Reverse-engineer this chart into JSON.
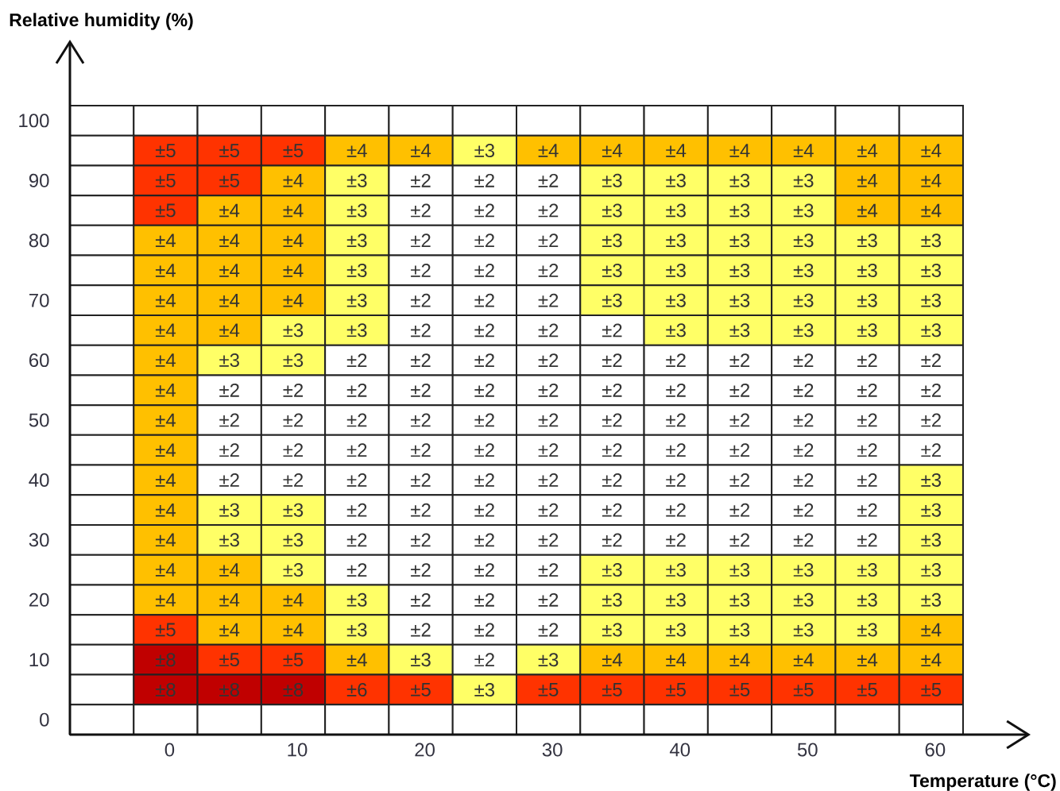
{
  "chart_data": {
    "type": "heatmap",
    "xlabel": "Temperature (°C)",
    "ylabel": "Relative humidity (%)",
    "categories": [
      null,
      "0",
      null,
      "10",
      null,
      "20",
      null,
      "30",
      null,
      "40",
      null,
      "50",
      null,
      "60"
    ],
    "y_categories": [
      "100",
      null,
      "90",
      null,
      "80",
      null,
      "70",
      null,
      "60",
      null,
      "50",
      null,
      "40",
      null,
      "30",
      null,
      "20",
      null,
      "10",
      null,
      "0"
    ],
    "cells": [
      [
        null,
        null,
        null,
        null,
        null,
        null,
        null,
        null,
        null,
        null,
        null,
        null,
        null,
        null
      ],
      [
        null,
        5,
        5,
        5,
        4,
        4,
        3,
        4,
        4,
        4,
        4,
        4,
        4,
        4
      ],
      [
        null,
        5,
        5,
        4,
        3,
        2,
        2,
        2,
        3,
        3,
        3,
        3,
        4,
        4
      ],
      [
        null,
        5,
        4,
        4,
        3,
        2,
        2,
        2,
        3,
        3,
        3,
        3,
        4,
        4
      ],
      [
        null,
        4,
        4,
        4,
        3,
        2,
        2,
        2,
        3,
        3,
        3,
        3,
        3,
        3
      ],
      [
        null,
        4,
        4,
        4,
        3,
        2,
        2,
        2,
        3,
        3,
        3,
        3,
        3,
        3
      ],
      [
        null,
        4,
        4,
        4,
        3,
        2,
        2,
        2,
        3,
        3,
        3,
        3,
        3,
        3
      ],
      [
        null,
        4,
        4,
        3,
        3,
        2,
        2,
        2,
        2,
        3,
        3,
        3,
        3,
        3
      ],
      [
        null,
        4,
        3,
        3,
        2,
        2,
        2,
        2,
        2,
        2,
        2,
        2,
        2,
        2
      ],
      [
        null,
        4,
        2,
        2,
        2,
        2,
        2,
        2,
        2,
        2,
        2,
        2,
        2,
        2
      ],
      [
        null,
        4,
        2,
        2,
        2,
        2,
        2,
        2,
        2,
        2,
        2,
        2,
        2,
        2
      ],
      [
        null,
        4,
        2,
        2,
        2,
        2,
        2,
        2,
        2,
        2,
        2,
        2,
        2,
        2
      ],
      [
        null,
        4,
        2,
        2,
        2,
        2,
        2,
        2,
        2,
        2,
        2,
        2,
        2,
        3
      ],
      [
        null,
        4,
        3,
        3,
        2,
        2,
        2,
        2,
        2,
        2,
        2,
        2,
        2,
        3
      ],
      [
        null,
        4,
        3,
        3,
        2,
        2,
        2,
        2,
        2,
        2,
        2,
        2,
        2,
        3
      ],
      [
        null,
        4,
        4,
        3,
        2,
        2,
        2,
        2,
        3,
        3,
        3,
        3,
        3,
        3
      ],
      [
        null,
        4,
        4,
        4,
        3,
        2,
        2,
        2,
        3,
        3,
        3,
        3,
        3,
        3
      ],
      [
        null,
        5,
        4,
        4,
        3,
        2,
        2,
        2,
        3,
        3,
        3,
        3,
        3,
        4
      ],
      [
        null,
        8,
        5,
        5,
        4,
        3,
        2,
        3,
        4,
        4,
        4,
        4,
        4,
        4
      ],
      [
        null,
        8,
        8,
        8,
        6,
        5,
        3,
        5,
        5,
        5,
        5,
        5,
        5,
        5
      ],
      [
        null,
        null,
        null,
        null,
        null,
        null,
        null,
        null,
        null,
        null,
        null,
        null,
        null,
        null
      ]
    ],
    "cell_labels": [
      [
        null,
        null,
        null,
        null,
        null,
        null,
        null,
        null,
        null,
        null,
        null,
        null,
        null,
        null
      ],
      [
        null,
        "±5",
        "±5",
        "±5",
        "±4",
        "±4",
        "±3",
        "±4",
        "±4",
        "±4",
        "±4",
        "±4",
        "±4",
        "±4"
      ],
      [
        null,
        "±5",
        "±5",
        "±4",
        "±3",
        "±2",
        "±2",
        "±2",
        "±3",
        "±3",
        "±3",
        "±3",
        "±4",
        "±4"
      ],
      [
        null,
        "±5",
        "±4",
        "±4",
        "±3",
        "±2",
        "±2",
        "±2",
        "±3",
        "±3",
        "±3",
        "±3",
        "±4",
        "±4"
      ],
      [
        null,
        "±4",
        "±4",
        "±4",
        "±3",
        "±2",
        "±2",
        "±2",
        "±3",
        "±3",
        "±3",
        "±3",
        "±3",
        "±3"
      ],
      [
        null,
        "±4",
        "±4",
        "±4",
        "±3",
        "±2",
        "±2",
        "±2",
        "±3",
        "±3",
        "±3",
        "±3",
        "±3",
        "±3"
      ],
      [
        null,
        "±4",
        "±4",
        "±4",
        "±3",
        "±2",
        "±2",
        "±2",
        "±3",
        "±3",
        "±3",
        "±3",
        "±3",
        "±3"
      ],
      [
        null,
        "±4",
        "±4",
        "±3",
        "±3",
        "±2",
        "±2",
        "±2",
        "±2",
        "±3",
        "±3",
        "±3",
        "±3",
        "±3"
      ],
      [
        null,
        "±4",
        "±3",
        "±3",
        "±2",
        "±2",
        "±2",
        "±2",
        "±2",
        "±2",
        "±2",
        "±2",
        "±2",
        "±2"
      ],
      [
        null,
        "±4",
        "±2",
        "±2",
        "±2",
        "±2",
        "±2",
        "±2",
        "±2",
        "±2",
        "±2",
        "±2",
        "±2",
        "±2"
      ],
      [
        null,
        "±4",
        "±2",
        "±2",
        "±2",
        "±2",
        "±2",
        "±2",
        "±2",
        "±2",
        "±2",
        "±2",
        "±2",
        "±2"
      ],
      [
        null,
        "±4",
        "±2",
        "±2",
        "±2",
        "±2",
        "±2",
        "±2",
        "±2",
        "±2",
        "±2",
        "±2",
        "±2",
        "±2"
      ],
      [
        null,
        "±4",
        "±2",
        "±2",
        "±2",
        "±2",
        "±2",
        "±2",
        "±2",
        "±2",
        "±2",
        "±2",
        "±2",
        "±3"
      ],
      [
        null,
        "±4",
        "±3",
        "±3",
        "±2",
        "±2",
        "±2",
        "±2",
        "±2",
        "±2",
        "±2",
        "±2",
        "±2",
        "±3"
      ],
      [
        null,
        "±4",
        "±3",
        "±3",
        "±2",
        "±2",
        "±2",
        "±2",
        "±2",
        "±2",
        "±2",
        "±2",
        "±2",
        "±3"
      ],
      [
        null,
        "±4",
        "±4",
        "±3",
        "±2",
        "±2",
        "±2",
        "±2",
        "±3",
        "±3",
        "±3",
        "±3",
        "±3",
        "±3"
      ],
      [
        null,
        "±4",
        "±4",
        "±4",
        "±3",
        "±2",
        "±2",
        "±2",
        "±3",
        "±3",
        "±3",
        "±3",
        "±3",
        "±3"
      ],
      [
        null,
        "±5",
        "±4",
        "±4",
        "±3",
        "±2",
        "±2",
        "±2",
        "±3",
        "±3",
        "±3",
        "±3",
        "±3",
        "±4"
      ],
      [
        null,
        "±8",
        "±5",
        "±5",
        "±4",
        "±3",
        "±2",
        "±3",
        "±4",
        "±4",
        "±4",
        "±4",
        "±4",
        "±4"
      ],
      [
        null,
        "±8",
        "±8",
        "±8",
        "±6",
        "±5",
        "±3",
        "±5",
        "±5",
        "±5",
        "±5",
        "±5",
        "±5",
        "±5"
      ],
      [
        null,
        null,
        null,
        null,
        null,
        null,
        null,
        null,
        null,
        null,
        null,
        null,
        null,
        null
      ]
    ]
  }
}
